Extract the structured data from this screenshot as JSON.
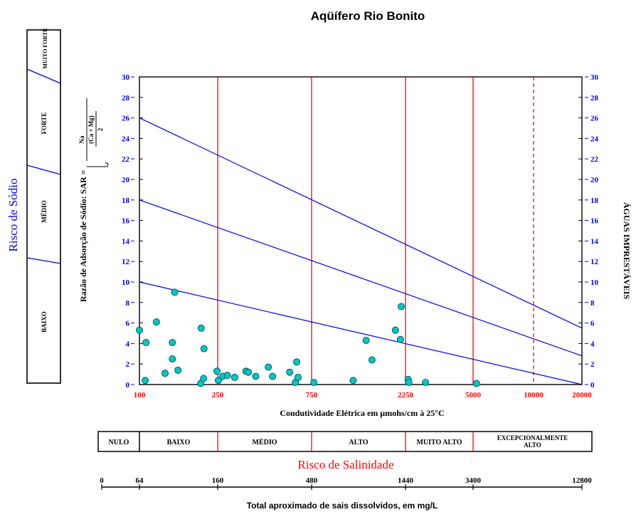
{
  "chart_data": {
    "type": "scatter",
    "title": "Aqüífero Rio Bonito",
    "xlabel": "Condutividade Elétrica em µmohs/cm à 25°C",
    "ylabel": "Razão de Adsorção de Sódio: SAR =",
    "ylabel_formula": {
      "numerator": "Na",
      "denominator": "(Ca + Mg)",
      "divisor": "2"
    },
    "right_label": "ÁGUAS IMPRESTÁVEIS",
    "ylim": [
      0,
      30
    ],
    "y_ticks": [
      0,
      2,
      4,
      6,
      8,
      10,
      12,
      14,
      16,
      18,
      20,
      22,
      24,
      26,
      28,
      30
    ],
    "x_ticks": [
      "100",
      "250",
      "750",
      "2250",
      "5000",
      "10000",
      "20000"
    ],
    "x_scale": "nonlinear (classification breakpoints)",
    "class_boundaries": [
      {
        "x": "250",
        "style": "solid",
        "color": "#ff0000"
      },
      {
        "x": "750",
        "style": "solid",
        "color": "#ff0000"
      },
      {
        "x": "2250",
        "style": "solid",
        "color": "#ff0000"
      },
      {
        "x": "5000",
        "style": "solid",
        "color": "#ff0000"
      },
      {
        "x": "10000",
        "style": "dashed",
        "color": "#ff0000"
      }
    ],
    "risk_lines": [
      {
        "from": [
          100,
          26.0
        ],
        "to": [
          20000,
          5.5
        ]
      },
      {
        "from": [
          100,
          18.0
        ],
        "to": [
          20000,
          2.8
        ]
      },
      {
        "from": [
          100,
          10.0
        ],
        "to": [
          20000,
          0.0
        ]
      }
    ],
    "points": [
      [
        100,
        5.3
      ],
      [
        108,
        4.1
      ],
      [
        107,
        0.4
      ],
      [
        122,
        6.1
      ],
      [
        135,
        1.1
      ],
      [
        147,
        4.1
      ],
      [
        147,
        2.5
      ],
      [
        151,
        9.0
      ],
      [
        157,
        1.4
      ],
      [
        206,
        5.5
      ],
      [
        205,
        0.1
      ],
      [
        212,
        0.6
      ],
      [
        213,
        3.5
      ],
      [
        248,
        1.3
      ],
      [
        252,
        0.4
      ],
      [
        265,
        0.8
      ],
      [
        280,
        0.9
      ],
      [
        305,
        0.7
      ],
      [
        348,
        1.3
      ],
      [
        358,
        1.2
      ],
      [
        390,
        0.8
      ],
      [
        452,
        1.7
      ],
      [
        475,
        0.8
      ],
      [
        580,
        1.2
      ],
      [
        620,
        0.2
      ],
      [
        630,
        2.2
      ],
      [
        640,
        0.7
      ],
      [
        770,
        0.2
      ],
      [
        1220,
        0.4
      ],
      [
        1420,
        4.3
      ],
      [
        1520,
        2.4
      ],
      [
        2000,
        5.3
      ],
      [
        2120,
        4.4
      ],
      [
        2140,
        7.6
      ],
      [
        2320,
        0.5
      ],
      [
        2340,
        0.2
      ],
      [
        2850,
        0.2
      ],
      [
        5200,
        0.1
      ]
    ],
    "point_color": "#00c8c8",
    "line_color": "#0000ff",
    "axis_tick_color": "#0000ff",
    "x_tick_color": "#ff0000"
  },
  "sodium_risk": {
    "title": "Risco de Sódio",
    "classes": [
      "MUITO FORTE",
      "FORTE",
      "MÉDIO",
      "BAIXO"
    ]
  },
  "salinity_risk": {
    "title": "Risco de Salinidade",
    "classes": [
      "NULO",
      "BAIXO",
      "MÉDIO",
      "ALTO",
      "MUITO ALTO",
      "EXCEPCIONALMENTE ALTO"
    ]
  },
  "tds_scale": {
    "label": "Total aproximado de sais dissolvidos, em mg/L",
    "ticks": [
      "0",
      "64",
      "160",
      "480",
      "1440",
      "3400",
      "12800"
    ]
  },
  "colors": {
    "title_blue": "#0000ff",
    "title_red": "#ff0000",
    "axis": "#000000"
  }
}
